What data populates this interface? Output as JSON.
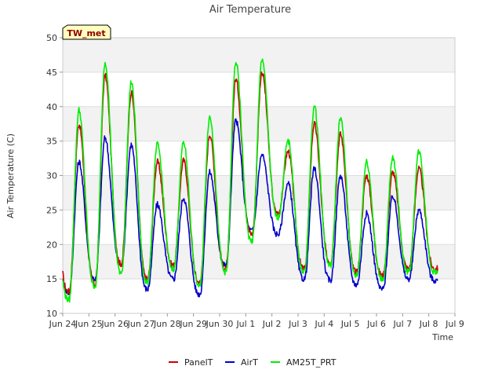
{
  "chart_data": {
    "type": "line",
    "title": "Air Temperature",
    "xlabel": "Time",
    "ylabel": "Air Temperature (C)",
    "station_badge": "TW_met",
    "ylim": [
      10,
      50
    ],
    "xlim": [
      "Jun 24",
      "Jul 9"
    ],
    "yticks": [
      10,
      15,
      20,
      25,
      30,
      35,
      40,
      45,
      50
    ],
    "xticks": [
      "Jun 24",
      "Jun 25",
      "Jun 26",
      "Jun 27",
      "Jun 28",
      "Jun 29",
      "Jun 30",
      "Jul 1",
      "Jul 2",
      "Jul 3",
      "Jul 4",
      "Jul 5",
      "Jul 6",
      "Jul 7",
      "Jul 8",
      "Jul 9"
    ],
    "grid": true,
    "legend_position": "bottom",
    "daily_extremes_note": "x values are days from Jun 24 00:00",
    "series": [
      {
        "name": "PanelT",
        "color": "#cc0000",
        "daily": [
          {
            "min": 13.2,
            "max": 37.5
          },
          {
            "min": 14.2,
            "max": 44.5
          },
          {
            "min": 17.2,
            "max": 42.0
          },
          {
            "min": 15.0,
            "max": 32.0
          },
          {
            "min": 17.0,
            "max": 32.2
          },
          {
            "min": 14.5,
            "max": 36.0
          },
          {
            "min": 16.5,
            "max": 44.0
          },
          {
            "min": 21.5,
            "max": 45.0
          },
          {
            "min": 24.5,
            "max": 33.5
          },
          {
            "min": 16.5,
            "max": 37.5
          },
          {
            "min": 17.5,
            "max": 36.0
          },
          {
            "min": 16.0,
            "max": 30.0
          },
          {
            "min": 15.5,
            "max": 30.5
          },
          {
            "min": 16.5,
            "max": 31.0
          },
          {
            "min": 16.5,
            "max": 16.5
          }
        ]
      },
      {
        "name": "AirT",
        "color": "#0000cc",
        "daily": [
          {
            "min": 13.0,
            "max": 32.0
          },
          {
            "min": 15.0,
            "max": 35.5
          },
          {
            "min": 17.0,
            "max": 34.5
          },
          {
            "min": 13.5,
            "max": 25.8
          },
          {
            "min": 15.0,
            "max": 26.8
          },
          {
            "min": 12.8,
            "max": 30.5
          },
          {
            "min": 17.0,
            "max": 38.0
          },
          {
            "min": 22.0,
            "max": 33.0
          },
          {
            "min": 21.5,
            "max": 28.8
          },
          {
            "min": 15.0,
            "max": 31.0
          },
          {
            "min": 14.8,
            "max": 30.0
          },
          {
            "min": 14.2,
            "max": 24.5
          },
          {
            "min": 13.5,
            "max": 27.0
          },
          {
            "min": 15.0,
            "max": 25.0
          },
          {
            "min": 14.8,
            "max": 14.8
          }
        ]
      },
      {
        "name": "AM25T_PRT",
        "color": "#00ee00",
        "daily": [
          {
            "min": 12.0,
            "max": 39.5
          },
          {
            "min": 14.0,
            "max": 46.5
          },
          {
            "min": 16.0,
            "max": 43.5
          },
          {
            "min": 14.5,
            "max": 34.5
          },
          {
            "min": 16.5,
            "max": 34.8
          },
          {
            "min": 14.0,
            "max": 38.5
          },
          {
            "min": 16.0,
            "max": 46.5
          },
          {
            "min": 20.5,
            "max": 47.0
          },
          {
            "min": 24.0,
            "max": 35.0
          },
          {
            "min": 16.0,
            "max": 40.0
          },
          {
            "min": 17.0,
            "max": 38.3
          },
          {
            "min": 15.5,
            "max": 32.0
          },
          {
            "min": 15.0,
            "max": 32.5
          },
          {
            "min": 16.0,
            "max": 33.5
          },
          {
            "min": 16.0,
            "max": 16.0
          }
        ]
      }
    ]
  }
}
